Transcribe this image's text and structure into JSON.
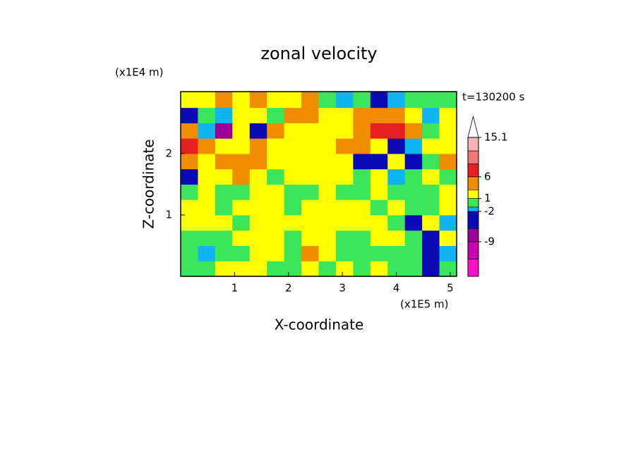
{
  "chart_data": {
    "type": "contour",
    "title": "zonal velocity",
    "annotation": "t=130200 s",
    "x_label": "X-coordinate",
    "y_label": "Z-coordinate",
    "x_scale_label": "(x1E5 m)",
    "y_scale_label": "(x1E4 m)",
    "xlim": [
      0,
      5.12
    ],
    "ylim": [
      0,
      3.01
    ],
    "xticks": [
      1,
      2,
      3,
      4,
      5
    ],
    "yticks": [
      1,
      2
    ],
    "x": [
      0.16,
      0.48,
      0.8,
      1.12,
      1.44,
      1.76,
      2.08,
      2.4,
      2.72,
      3.04,
      3.36,
      3.68,
      4.0,
      4.32,
      4.64,
      4.96
    ],
    "y": [
      0.125,
      0.375,
      0.625,
      0.875,
      1.125,
      1.375,
      1.625,
      1.875,
      2.125,
      2.375,
      2.625,
      2.875
    ],
    "z": [
      [
        0,
        0,
        2,
        2,
        2,
        0,
        0,
        2,
        0,
        2,
        0,
        2,
        0,
        -1,
        -3,
        0
      ],
      [
        0,
        -1.5,
        0,
        0,
        2,
        2,
        0,
        4,
        2,
        0,
        0,
        0,
        -1,
        0,
        -4,
        -2
      ],
      [
        0,
        0,
        0,
        2,
        2,
        2,
        0,
        2,
        2,
        0,
        0,
        2,
        2,
        0,
        -3,
        2
      ],
      [
        2,
        2,
        2,
        0,
        2,
        2,
        2,
        2,
        2,
        2,
        2,
        2,
        0,
        -4,
        2,
        -2
      ],
      [
        2,
        2,
        0,
        2,
        2,
        2,
        0,
        2,
        2,
        2,
        2,
        0,
        2,
        -1,
        0,
        2
      ],
      [
        0,
        2,
        0,
        0,
        2,
        2,
        0,
        0,
        2,
        0,
        0,
        2,
        0,
        -1,
        0,
        2
      ],
      [
        -4,
        2,
        2,
        4,
        2,
        0,
        2,
        2,
        2,
        2,
        0,
        2,
        -2,
        0,
        2,
        0
      ],
      [
        4,
        2,
        4,
        4,
        4,
        2,
        2,
        2,
        2,
        2,
        -6,
        -4,
        2,
        -4,
        0,
        4
      ],
      [
        7,
        4,
        2,
        2,
        4,
        2,
        2,
        2,
        2,
        4,
        4,
        2,
        -6,
        -2,
        2,
        2
      ],
      [
        4,
        -2,
        -8,
        2,
        -4,
        4,
        2,
        2,
        2,
        2,
        4,
        7,
        7,
        4,
        0,
        2
      ],
      [
        -4,
        0,
        -2,
        2,
        2,
        0,
        4,
        4,
        2,
        2,
        4,
        4,
        4,
        2,
        -2,
        2
      ],
      [
        2,
        2,
        4,
        2,
        4,
        2,
        2,
        4,
        0,
        -2,
        0,
        -6,
        -2,
        0,
        0,
        0
      ]
    ],
    "colorbar": {
      "levels": [
        -17,
        -13,
        -9,
        -6,
        -2,
        -1,
        1,
        3,
        6,
        9,
        12,
        15.1
      ],
      "colors": [
        "#ff10c8",
        "#c800b0",
        "#9a0096",
        "#0a0ab4",
        "#10b4f0",
        "#3ce65a",
        "#ffff00",
        "#f08c00",
        "#e62020",
        "#f07878",
        "#f8b4b4"
      ],
      "extend": "max",
      "extend_color": "#ffffff",
      "ticks": [
        15.1,
        6,
        1,
        -2,
        -9
      ]
    }
  }
}
